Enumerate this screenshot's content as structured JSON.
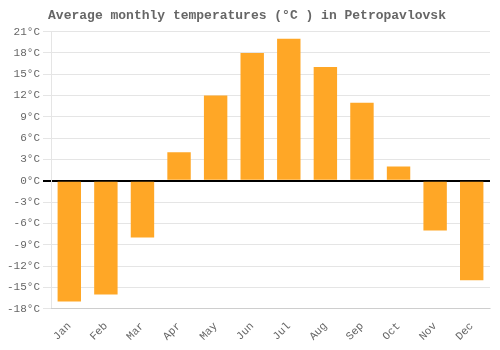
{
  "chart_data": {
    "type": "bar",
    "title": "Average monthly temperatures (°C ) in Petropavlovsk",
    "categories": [
      "Jan",
      "Feb",
      "Mar",
      "Apr",
      "May",
      "Jun",
      "Jul",
      "Aug",
      "Sep",
      "Oct",
      "Nov",
      "Dec"
    ],
    "values": [
      -17,
      -16,
      -8,
      4,
      12,
      18,
      20,
      16,
      11,
      2,
      -7,
      -14
    ],
    "color": "#FFA726",
    "ylim": [
      -18,
      21
    ],
    "yticks": [
      {
        "value": -18,
        "label": "-18°C"
      },
      {
        "value": -15,
        "label": "-15°C"
      },
      {
        "value": -12,
        "label": "-12°C"
      },
      {
        "value": -9,
        "label": "-9°C"
      },
      {
        "value": -6,
        "label": "-6°C"
      },
      {
        "value": -3,
        "label": "-3°C"
      },
      {
        "value": 0,
        "label": "0°C"
      },
      {
        "value": 3,
        "label": "3°C"
      },
      {
        "value": 6,
        "label": "6°C"
      },
      {
        "value": 9,
        "label": "9°C"
      },
      {
        "value": 12,
        "label": "12°C"
      },
      {
        "value": 15,
        "label": "15°C"
      },
      {
        "value": 18,
        "label": "18°C"
      },
      {
        "value": 21,
        "label": "21°C"
      }
    ],
    "grid": true
  }
}
